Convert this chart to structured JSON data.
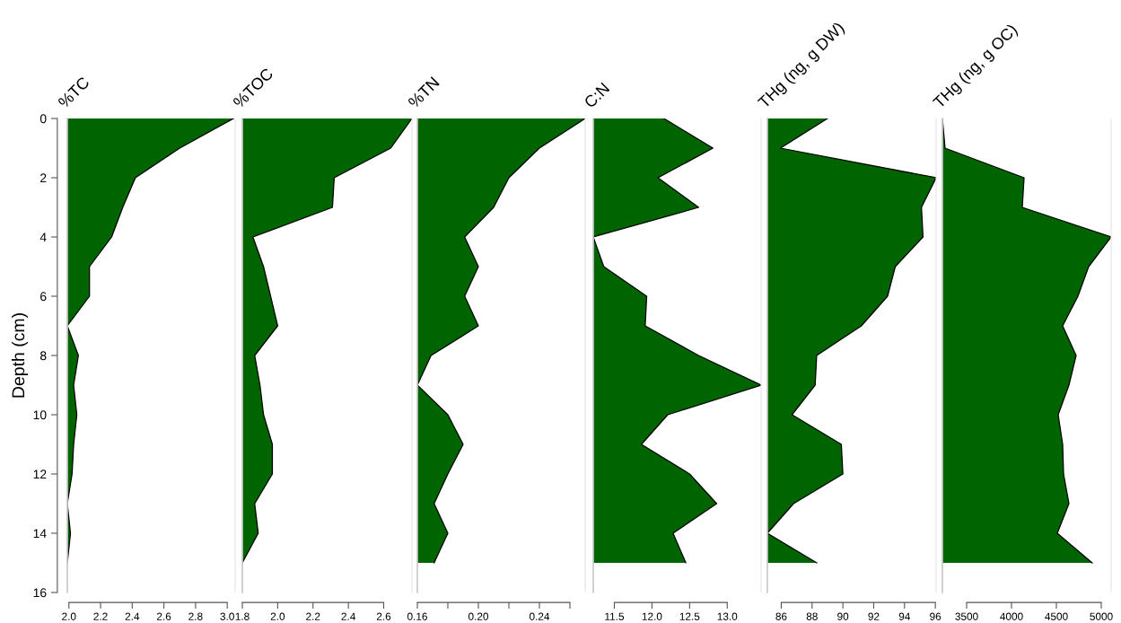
{
  "chart_data": [
    {
      "type": "area",
      "orientation": "horizontal",
      "title": "%TC",
      "ylabel": "Depth (cm)",
      "color": "#006400",
      "x": [
        0,
        1,
        2,
        3,
        4,
        5,
        6,
        7,
        8,
        9,
        10,
        11,
        12,
        13,
        14,
        15
      ],
      "values": [
        3.04,
        2.7,
        2.42,
        2.34,
        2.27,
        2.13,
        2.13,
        1.99,
        2.06,
        2.03,
        2.05,
        2.03,
        2.02,
        1.99,
        2.01,
        1.99
      ],
      "xlim": [
        1.99,
        3.05
      ],
      "xticks": [
        {
          "value": 2.0,
          "label": "2.0"
        },
        2.2,
        2.4,
        2.6,
        2.8,
        {
          "value": 3.0,
          "label": "3.0"
        }
      ],
      "ylim": [
        16,
        0
      ],
      "yticks": [
        0,
        2,
        4,
        6,
        8,
        10,
        12,
        14,
        16
      ]
    },
    {
      "type": "area",
      "orientation": "horizontal",
      "title": "%TOC",
      "color": "#006400",
      "x": [
        0,
        1,
        2,
        3,
        4,
        5,
        6,
        7,
        8,
        9,
        10,
        11,
        12,
        13,
        14,
        15
      ],
      "values": [
        2.76,
        2.64,
        2.32,
        2.31,
        1.86,
        1.92,
        1.96,
        2.0,
        1.87,
        1.9,
        1.92,
        1.97,
        1.97,
        1.87,
        1.89,
        1.8
      ],
      "xlim": [
        1.8,
        2.76
      ],
      "xticks": [
        1.8,
        {
          "value": 2.0,
          "label": "2.0"
        },
        2.2,
        2.4,
        2.6
      ],
      "ylim": [
        16,
        0
      ],
      "yticks": [
        0,
        2,
        4,
        6,
        8,
        10,
        12,
        14,
        16
      ],
      "tick_labels": "x"
    },
    {
      "type": "area",
      "orientation": "horizontal",
      "title": "%TN",
      "color": "#006400",
      "x": [
        0,
        1,
        2,
        3,
        4,
        5,
        6,
        7,
        8,
        9,
        10,
        11,
        12,
        13,
        14,
        15
      ],
      "values": [
        0.27,
        0.24,
        0.22,
        0.21,
        0.191,
        0.2,
        0.191,
        0.2,
        0.169,
        0.16,
        0.18,
        0.19,
        0.18,
        0.171,
        0.18,
        0.171
      ],
      "xlim": [
        0.16,
        0.27
      ],
      "xticks": [
        0.16,
        {
          "value": 0.18,
          "label": null
        },
        {
          "value": 0.2,
          "label": "0.20"
        },
        {
          "value": 0.22,
          "label": null
        },
        0.24,
        {
          "value": 0.26,
          "label": null
        }
      ],
      "ylim": [
        16,
        0
      ],
      "yticks": [
        0,
        2,
        4,
        6,
        8,
        10,
        12,
        14,
        16
      ],
      "tick_labels": "x"
    },
    {
      "type": "area",
      "orientation": "horizontal",
      "title": "C:N",
      "color": "#006400",
      "x": [
        0,
        1,
        2,
        3,
        4,
        5,
        6,
        7,
        8,
        9,
        10,
        11,
        12,
        13,
        14,
        15
      ],
      "values": [
        12.16,
        12.81,
        12.08,
        12.62,
        11.22,
        11.36,
        11.93,
        11.91,
        12.62,
        13.45,
        12.21,
        11.86,
        12.5,
        12.86,
        12.28,
        12.45
      ],
      "xlim": [
        11.22,
        13.45
      ],
      "xticks": [
        11.5,
        {
          "value": 12.0,
          "label": "12.0"
        },
        12.5,
        {
          "value": 13.0,
          "label": "13.0"
        }
      ],
      "ylim": [
        16,
        0
      ],
      "yticks": [
        0,
        2,
        4,
        6,
        8,
        10,
        12,
        14,
        16
      ],
      "tick_labels": "x"
    },
    {
      "type": "area",
      "orientation": "horizontal",
      "title": "THg (ng, g DW)",
      "color": "#006400",
      "x": [
        0,
        1,
        2,
        3,
        4,
        5,
        6,
        7,
        8,
        9,
        10,
        11,
        12,
        13,
        14,
        15
      ],
      "values": [
        89.0,
        85.95,
        96.05,
        95.1,
        95.2,
        93.4,
        92.9,
        91.2,
        88.3,
        88.2,
        86.7,
        89.9,
        90.0,
        86.8,
        85.1,
        88.3
      ],
      "xlim": [
        85.1,
        96.05
      ],
      "xticks": [
        86,
        88,
        90,
        92,
        94,
        96
      ],
      "ylim": [
        16,
        0
      ],
      "yticks": [
        0,
        2,
        4,
        6,
        8,
        10,
        12,
        14,
        16
      ],
      "tick_labels": "x"
    },
    {
      "type": "area",
      "orientation": "horizontal",
      "title": "THg (ng, g OC)",
      "color": "#006400",
      "x": [
        0,
        1,
        2,
        3,
        4,
        5,
        6,
        7,
        8,
        9,
        10,
        11,
        12,
        13,
        14,
        15
      ],
      "values": [
        3230,
        3260,
        4140,
        4120,
        5110,
        4860,
        4740,
        4570,
        4720,
        4640,
        4520,
        4570,
        4580,
        4640,
        4510,
        4900
      ],
      "xlim": [
        3230,
        5110
      ],
      "xticks": [
        3500,
        4000,
        4500,
        5000
      ],
      "ylim": [
        16,
        0
      ],
      "yticks": [
        0,
        2,
        4,
        6,
        8,
        10,
        12,
        14,
        16
      ],
      "tick_labels": "x"
    }
  ]
}
